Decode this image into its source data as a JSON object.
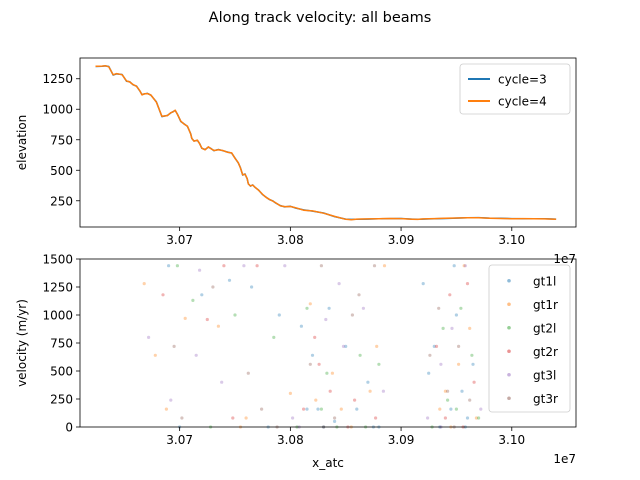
{
  "figure": {
    "title": "Along track velocity: all beams"
  },
  "chart_data": [
    {
      "type": "line",
      "title": "",
      "xlabel": "",
      "ylabel": "elevation",
      "x_offset_label": "1e7",
      "xlim": [
        3.061,
        3.1058
      ],
      "ylim": [
        35,
        1420
      ],
      "xticks": [
        3.07,
        3.08,
        3.09,
        3.1
      ],
      "xtick_labels": [
        "3.07",
        "3.08",
        "3.09",
        "3.10"
      ],
      "yticks": [
        250,
        500,
        750,
        1000,
        1250
      ],
      "ytick_labels": [
        "250",
        "500",
        "750",
        "1000",
        "1250"
      ],
      "legend_position": "top-right",
      "series": [
        {
          "name": "cycle=3",
          "color": "#1f77b4",
          "x": [
            3.0624,
            3.063,
            3.0633,
            3.0636,
            3.064,
            3.0643,
            3.0648,
            3.0652,
            3.0655,
            3.0658,
            3.0661,
            3.0664,
            3.0666,
            3.0668,
            3.0671,
            3.0674,
            3.0679,
            3.0684,
            3.0689,
            3.0692,
            3.0694,
            3.0696,
            3.0698,
            3.0701,
            3.0704,
            3.0707,
            3.071,
            3.0711,
            3.0713,
            3.0716,
            3.0718,
            3.072,
            3.0723,
            3.0726,
            3.0728,
            3.0731,
            3.0735,
            3.0739,
            3.0743,
            3.0747,
            3.075,
            3.0753,
            3.0755,
            3.0757,
            3.0759,
            3.0761,
            3.0762,
            3.0764,
            3.0766,
            3.0768,
            3.0771,
            3.0775,
            3.0778,
            3.0781,
            3.0784,
            3.0787,
            3.0791,
            3.0795,
            3.08,
            3.0805,
            3.0812,
            3.082,
            3.083,
            3.084,
            3.085,
            3.0855,
            3.086,
            3.087,
            3.088,
            3.089,
            3.09,
            3.091,
            3.0915,
            3.092,
            3.093,
            3.094,
            3.095,
            3.096,
            3.097,
            3.098,
            3.099,
            3.1,
            3.101,
            3.102,
            3.103,
            3.104
          ],
          "y": [
            1350,
            1352,
            1355,
            1350,
            1280,
            1290,
            1285,
            1230,
            1225,
            1200,
            1190,
            1150,
            1120,
            1125,
            1130,
            1115,
            1060,
            940,
            950,
            970,
            980,
            990,
            960,
            900,
            880,
            860,
            800,
            760,
            740,
            745,
            720,
            680,
            670,
            690,
            680,
            660,
            670,
            660,
            650,
            640,
            600,
            560,
            520,
            460,
            470,
            430,
            390,
            370,
            380,
            360,
            340,
            300,
            280,
            260,
            250,
            230,
            210,
            200,
            205,
            190,
            175,
            165,
            150,
            120,
            100,
            97,
            99,
            100,
            102,
            104,
            105,
            100,
            98,
            100,
            103,
            105,
            108,
            110,
            112,
            108,
            106,
            104,
            103,
            102,
            102,
            100
          ]
        },
        {
          "name": "cycle=4",
          "color": "#ff7f0e",
          "x": [
            3.0624,
            3.063,
            3.0633,
            3.0636,
            3.064,
            3.0643,
            3.0648,
            3.0652,
            3.0655,
            3.0658,
            3.0661,
            3.0664,
            3.0666,
            3.0668,
            3.0671,
            3.0674,
            3.0679,
            3.0684,
            3.0689,
            3.0692,
            3.0694,
            3.0696,
            3.0698,
            3.0701,
            3.0704,
            3.0707,
            3.071,
            3.0711,
            3.0713,
            3.0716,
            3.0718,
            3.072,
            3.0723,
            3.0726,
            3.0728,
            3.0731,
            3.0735,
            3.0739,
            3.0743,
            3.0747,
            3.075,
            3.0753,
            3.0755,
            3.0757,
            3.0759,
            3.0761,
            3.0762,
            3.0764,
            3.0766,
            3.0768,
            3.0771,
            3.0775,
            3.0778,
            3.0781,
            3.0784,
            3.0787,
            3.0791,
            3.0795,
            3.08,
            3.0805,
            3.0812,
            3.082,
            3.083,
            3.084,
            3.085,
            3.0855,
            3.086,
            3.087,
            3.088,
            3.089,
            3.09,
            3.091,
            3.0915,
            3.092,
            3.093,
            3.094,
            3.095,
            3.096,
            3.097,
            3.098,
            3.099,
            3.1,
            3.101,
            3.102,
            3.103,
            3.104
          ],
          "y": [
            1352,
            1354,
            1356,
            1348,
            1282,
            1292,
            1283,
            1232,
            1223,
            1202,
            1188,
            1152,
            1118,
            1127,
            1128,
            1117,
            1058,
            942,
            948,
            972,
            978,
            992,
            958,
            902,
            878,
            862,
            798,
            762,
            738,
            747,
            718,
            682,
            668,
            692,
            678,
            662,
            668,
            662,
            648,
            642,
            598,
            562,
            518,
            462,
            468,
            432,
            388,
            372,
            378,
            362,
            338,
            302,
            278,
            262,
            248,
            232,
            208,
            202,
            203,
            192,
            173,
            167,
            148,
            122,
            98,
            95,
            100,
            101,
            103,
            105,
            104,
            99,
            97,
            101,
            104,
            106,
            109,
            111,
            111,
            107,
            105,
            103,
            104,
            103,
            101,
            99
          ]
        }
      ]
    },
    {
      "type": "scatter",
      "title": "",
      "xlabel": "x_atc",
      "ylabel": "velocity (m/yr)",
      "x_offset_label": "1e7",
      "xlim": [
        3.061,
        3.1058
      ],
      "ylim": [
        0,
        1500
      ],
      "xticks": [
        3.07,
        3.08,
        3.09,
        3.1
      ],
      "xtick_labels": [
        "3.07",
        "3.08",
        "3.09",
        "3.10"
      ],
      "yticks": [
        0,
        250,
        500,
        750,
        1000,
        1250,
        1500
      ],
      "ytick_labels": [
        "0",
        "250",
        "500",
        "750",
        "1000",
        "1250",
        "1500"
      ],
      "legend_position": "top-right",
      "series": [
        {
          "name": "gt1l",
          "color": "#1f77b4",
          "x": [
            3.069,
            3.072,
            3.0745,
            3.0765,
            3.079,
            3.081,
            3.082,
            3.0825,
            3.083,
            3.084,
            3.086,
            3.087,
            3.088,
            3.0925,
            3.0935,
            3.0945,
            3.095,
            3.0955,
            3.096,
            3.0965,
            3.07,
            3.078,
            3.0815,
            3.0835,
            3.085,
            3.0875,
            3.093,
            3.0948,
            3.0958,
            3.092
          ],
          "y": [
            1440,
            1180,
            1310,
            1250,
            1000,
            900,
            640,
            160,
            0,
            50,
            160,
            400,
            0,
            480,
            0,
            160,
            1000,
            320,
            80,
            560,
            0,
            0,
            160,
            1060,
            720,
            0,
            720,
            1440,
            0,
            1280
          ]
        },
        {
          "name": "gt1r",
          "color": "#ff7f0e",
          "x": [
            3.0668,
            3.0678,
            3.0705,
            3.0735,
            3.076,
            3.08,
            3.0823,
            3.0838,
            3.0855,
            3.0872,
            3.0885,
            3.0935,
            3.0945,
            3.0952,
            3.0962,
            3.0968,
            3.0688,
            3.0755,
            3.0818,
            3.0846,
            3.0878,
            3.094,
            3.0957
          ],
          "y": [
            1280,
            640,
            970,
            900,
            80,
            300,
            240,
            480,
            0,
            320,
            1440,
            160,
            0,
            560,
            880,
            80,
            160,
            0,
            1100,
            160,
            720,
            320,
            1440
          ]
        },
        {
          "name": "gt2l",
          "color": "#2ca02c",
          "x": [
            3.0698,
            3.0712,
            3.075,
            3.0785,
            3.0815,
            3.0828,
            3.0842,
            3.0863,
            3.088,
            3.0928,
            3.0942,
            3.0954,
            3.0964,
            3.097,
            3.0728,
            3.0806,
            3.0833,
            3.0868,
            3.0938,
            3.095
          ],
          "y": [
            1440,
            1130,
            1000,
            800,
            1060,
            160,
            0,
            640,
            560,
            0,
            240,
            1060,
            640,
            80,
            0,
            0,
            480,
            0,
            880,
            160
          ]
        },
        {
          "name": "gt2r",
          "color": "#d62728",
          "x": [
            3.0685,
            3.0725,
            3.074,
            3.077,
            3.0812,
            3.0822,
            3.0836,
            3.0858,
            3.0877,
            3.0932,
            3.0944,
            3.0956,
            3.0966,
            3.0748,
            3.0826,
            3.0852,
            3.094,
            3.096
          ],
          "y": [
            1180,
            960,
            1440,
            1440,
            160,
            800,
            320,
            240,
            80,
            720,
            1180,
            0,
            400,
            80,
            560,
            0,
            80,
            1280
          ]
        },
        {
          "name": "gt3l",
          "color": "#9467bd",
          "x": [
            3.0672,
            3.0692,
            3.0718,
            3.0738,
            3.0758,
            3.0795,
            3.0808,
            3.0832,
            3.0848,
            3.0866,
            3.0884,
            3.0924,
            3.0936,
            3.0946,
            3.0958,
            3.0972,
            3.0715,
            3.0802,
            3.0844,
            3.0936
          ],
          "y": [
            800,
            240,
            1400,
            400,
            1440,
            1440,
            0,
            960,
            720,
            1060,
            320,
            80,
            560,
            880,
            1440,
            160,
            640,
            80,
            1280,
            0
          ]
        },
        {
          "name": "gt3r",
          "color": "#8c564b",
          "x": [
            3.0695,
            3.073,
            3.0762,
            3.0788,
            3.0818,
            3.0828,
            3.084,
            3.0862,
            3.0876,
            3.0926,
            3.0942,
            3.0952,
            3.0962,
            3.0702,
            3.0774,
            3.083,
            3.0856,
            3.0934,
            3.0948
          ],
          "y": [
            720,
            1250,
            480,
            0,
            560,
            1440,
            80,
            1180,
            1440,
            640,
            320,
            720,
            240,
            80,
            160,
            0,
            1000,
            1060,
            0
          ]
        }
      ]
    }
  ]
}
